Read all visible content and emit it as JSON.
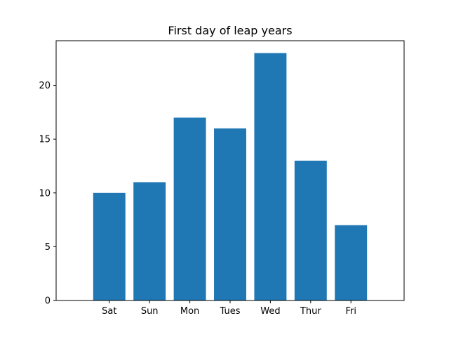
{
  "chart_data": {
    "type": "bar",
    "title": "First day of leap years",
    "xlabel": "",
    "ylabel": "",
    "categories": [
      "Sat",
      "Sun",
      "Mon",
      "Tues",
      "Wed",
      "Thur",
      "Fri"
    ],
    "values": [
      10,
      11,
      17,
      16,
      23,
      13,
      7
    ],
    "ylim": [
      0,
      24.15
    ],
    "yticks": [
      0,
      5,
      10,
      15,
      20
    ],
    "grid": false,
    "bar_color": "#1f77b4"
  }
}
